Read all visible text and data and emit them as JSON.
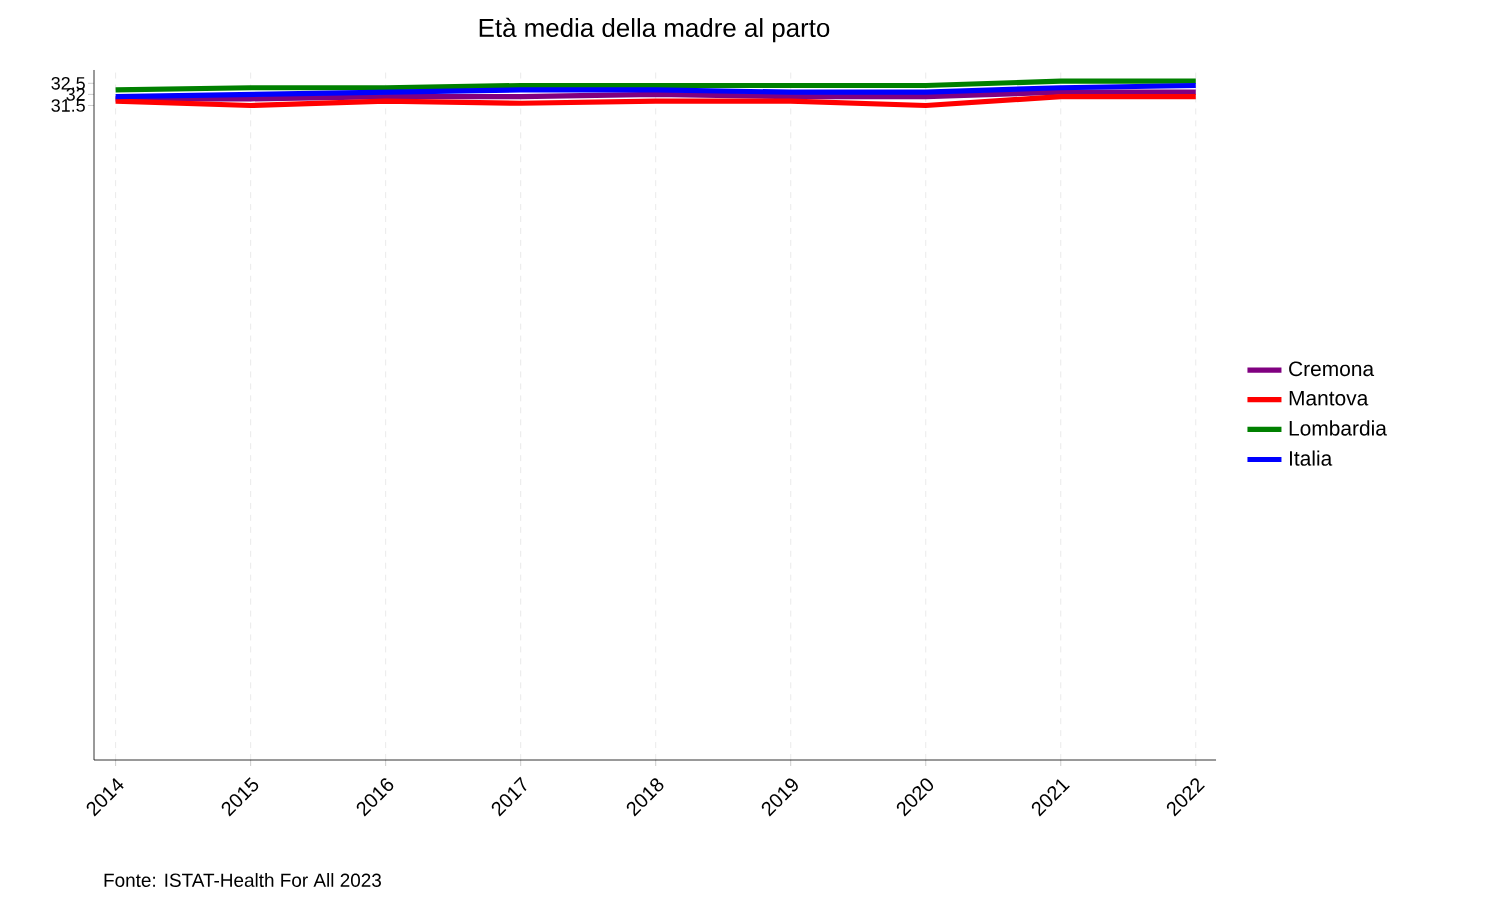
{
  "chart_data": {
    "type": "line",
    "title": "Età media della madre al parto",
    "x": [
      2014,
      2015,
      2016,
      2017,
      2018,
      2019,
      2020,
      2021,
      2022
    ],
    "series": [
      {
        "name": "Cremona",
        "color": "#800080",
        "values": [
          31.8,
          31.8,
          31.9,
          31.9,
          32.0,
          31.9,
          31.9,
          32.1,
          32.1
        ]
      },
      {
        "name": "Mantova",
        "color": "#ff0000",
        "values": [
          31.7,
          31.5,
          31.7,
          31.6,
          31.7,
          31.7,
          31.5,
          31.9,
          31.9
        ]
      },
      {
        "name": "Lombardia",
        "color": "#008000",
        "values": [
          32.2,
          32.3,
          32.3,
          32.4,
          32.4,
          32.4,
          32.4,
          32.6,
          32.6
        ]
      },
      {
        "name": "Italia",
        "color": "#0000ff",
        "values": [
          31.9,
          32.0,
          32.1,
          32.2,
          32.2,
          32.1,
          32.1,
          32.3,
          32.4
        ]
      }
    ],
    "xlim": [
      2013.84,
      2022.15
    ],
    "xticks": [
      2014,
      2015,
      2016,
      2017,
      2018,
      2019,
      2020,
      2021,
      2022
    ],
    "ylim": [
      2,
      33.1
    ],
    "yticks": [
      31.5,
      32,
      32.5
    ],
    "grid": "x",
    "legend": "right",
    "marker": "none",
    "line_style": "solid",
    "annotations": [
      "Fonte: ISTAT-Health For All 2023"
    ]
  }
}
